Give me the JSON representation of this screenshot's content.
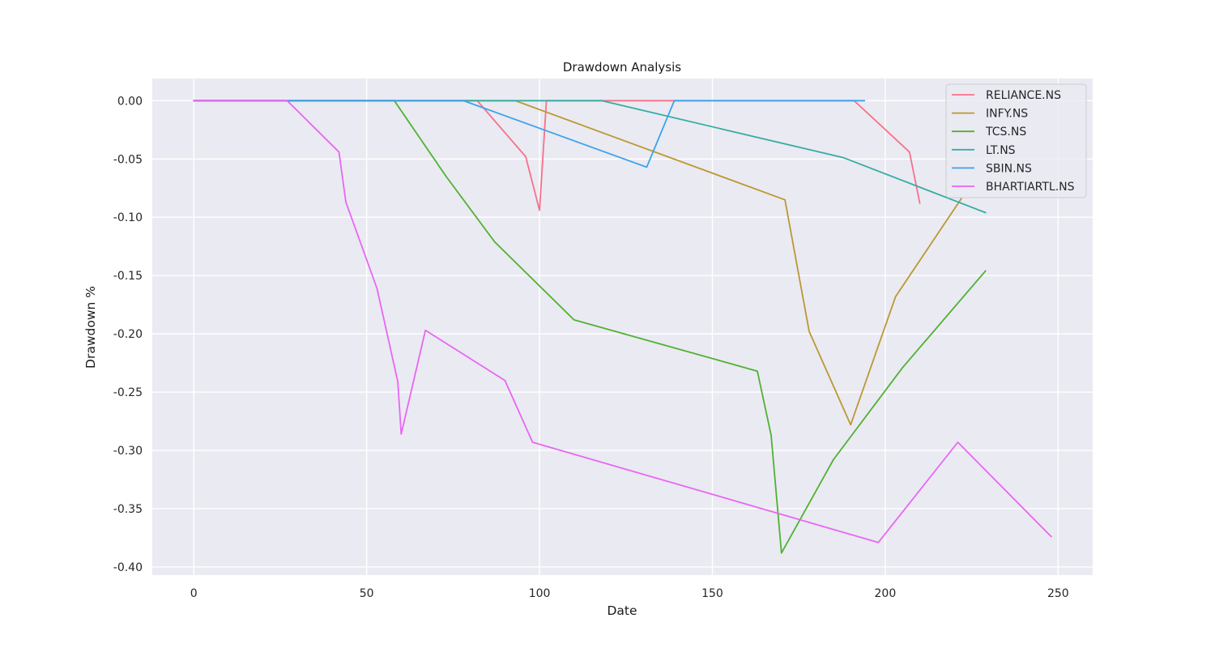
{
  "chart_data": {
    "type": "line",
    "title": "Drawdown Analysis",
    "xlabel": "Date",
    "ylabel": "Drawdown %",
    "xlim": [
      -12,
      260
    ],
    "ylim": [
      -0.407,
      0.019
    ],
    "xticks": [
      0,
      50,
      100,
      150,
      200,
      250
    ],
    "yticks": [
      0.0,
      -0.05,
      -0.1,
      -0.15,
      -0.2,
      -0.25,
      -0.3,
      -0.35,
      -0.4
    ],
    "ytick_labels": [
      "0.00",
      "-0.05",
      "-0.10",
      "-0.15",
      "-0.20",
      "-0.25",
      "-0.30",
      "-0.35",
      "-0.40"
    ],
    "grid": true,
    "legend_position": "top-right",
    "series": [
      {
        "name": "RELIANCE.NS",
        "color": "#f77189",
        "x": [
          0,
          82,
          96,
          100,
          102,
          138,
          191,
          207,
          210
        ],
        "y": [
          0,
          0,
          -0.048,
          -0.094,
          0,
          0,
          0,
          -0.044,
          -0.088
        ]
      },
      {
        "name": "INFY.NS",
        "color": "#bb9832",
        "x": [
          0,
          93,
          171,
          178,
          190,
          203,
          222
        ],
        "y": [
          0,
          0,
          -0.085,
          -0.198,
          -0.278,
          -0.168,
          -0.084
        ]
      },
      {
        "name": "TCS.NS",
        "color": "#50b131",
        "x": [
          0,
          58,
          73,
          87,
          110,
          163,
          167,
          170,
          185,
          205,
          229
        ],
        "y": [
          0,
          0,
          -0.065,
          -0.121,
          -0.188,
          -0.232,
          -0.287,
          -0.388,
          -0.308,
          -0.229,
          -0.146
        ]
      },
      {
        "name": "LT.NS",
        "color": "#36ada4",
        "x": [
          0,
          118,
          188,
          229
        ],
        "y": [
          0,
          0,
          -0.049,
          -0.096
        ]
      },
      {
        "name": "SBIN.NS",
        "color": "#3ba3ec",
        "x": [
          0,
          78,
          131,
          139,
          194
        ],
        "y": [
          0,
          0,
          -0.057,
          0,
          0
        ]
      },
      {
        "name": "BHARTIARTL.NS",
        "color": "#e866f4",
        "x": [
          0,
          27,
          42,
          44,
          53,
          59,
          60,
          67,
          90,
          98,
          198,
          221,
          248
        ],
        "y": [
          0,
          0,
          -0.044,
          -0.087,
          -0.161,
          -0.241,
          -0.286,
          -0.197,
          -0.24,
          -0.293,
          -0.379,
          -0.293,
          -0.374
        ]
      }
    ]
  }
}
